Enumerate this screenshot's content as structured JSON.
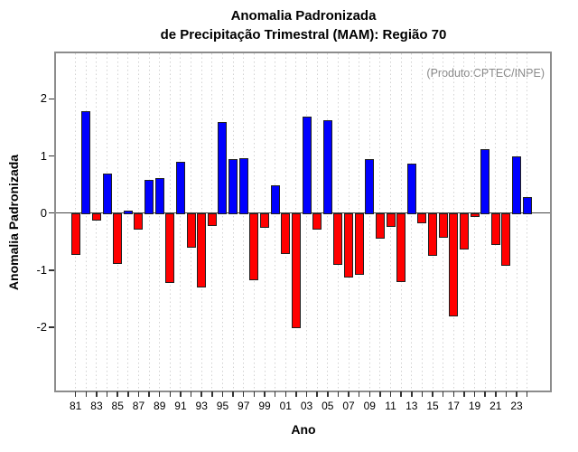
{
  "title_line1": "Anomalia Padronizada",
  "title_line2": "de Precipitação Trimestral (MAM): Região 70",
  "annotation": "(Produto:CPTEC/INPE)",
  "colors": {
    "positive_bar": "#0000FF",
    "negative_bar": "#FF0000",
    "bar_border": "#1f1f1f",
    "box_border": "#8c8c8c",
    "gridline": "#d2d2d2",
    "annotation_text": "#8a8a8a"
  },
  "chart_data": {
    "type": "bar",
    "title": "Anomalia Padronizada de Precipitação Trimestral (MAM): Região 70",
    "xlabel": "Ano",
    "ylabel": "Anomalia Padronizada",
    "legend": "none",
    "grid": "vertical dashed per year",
    "ylim": [
      -3.1,
      2.8
    ],
    "y_ticks": [
      -2,
      -1,
      0,
      1,
      2
    ],
    "x_tick_labels": [
      "81",
      "83",
      "85",
      "87",
      "89",
      "91",
      "93",
      "95",
      "97",
      "99",
      "01",
      "03",
      "05",
      "07",
      "09",
      "11",
      "13",
      "15",
      "17",
      "19",
      "21",
      "23"
    ],
    "categories": [
      "81",
      "82",
      "83",
      "84",
      "85",
      "86",
      "87",
      "88",
      "89",
      "90",
      "91",
      "92",
      "93",
      "94",
      "95",
      "96",
      "97",
      "98",
      "99",
      "00",
      "01",
      "02",
      "03",
      "04",
      "05",
      "06",
      "07",
      "08",
      "09",
      "10",
      "11",
      "12",
      "13",
      "14",
      "15",
      "16",
      "17",
      "18",
      "19",
      "20",
      "21",
      "22",
      "23",
      "24"
    ],
    "values": [
      -0.71,
      1.78,
      -0.11,
      0.69,
      -0.87,
      0.05,
      -0.27,
      0.58,
      0.62,
      -1.2,
      0.9,
      -0.59,
      -1.29,
      -0.21,
      1.59,
      0.94,
      0.96,
      -1.16,
      -0.25,
      0.48,
      -0.7,
      -2.0,
      1.69,
      -0.27,
      1.62,
      -0.89,
      -1.11,
      -1.07,
      0.95,
      -0.44,
      -0.23,
      -1.19,
      0.87,
      -0.16,
      -0.73,
      -0.42,
      -1.79,
      -0.62,
      -0.06,
      1.12,
      -0.55,
      -0.9,
      0.99,
      0.28
    ],
    "positive_color": "#0000FF",
    "negative_color": "#FF0000"
  }
}
